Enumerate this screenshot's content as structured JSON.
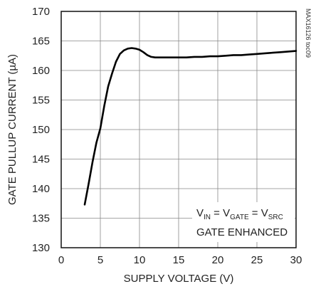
{
  "chart_data": {
    "type": "line",
    "xlabel": "SUPPLY VOLTAGE (V)",
    "ylabel": "GATE PULLUP CURRENT (µA)",
    "xlim": [
      0,
      30
    ],
    "ylim": [
      130,
      170
    ],
    "x_ticks": [
      0,
      5,
      10,
      15,
      20,
      25,
      30
    ],
    "y_ticks": [
      130,
      135,
      140,
      145,
      150,
      155,
      160,
      165,
      170
    ],
    "grid": true,
    "series": [
      {
        "x": [
          3.0,
          3.5,
          4.0,
          4.5,
          5.0,
          5.5,
          6.0,
          6.5,
          7.0,
          7.5,
          8.0,
          8.5,
          9.0,
          9.5,
          10.0,
          10.5,
          11.0,
          11.5,
          12.0,
          13.0,
          14.0,
          15.0,
          16.0,
          17.0,
          18.0,
          19.0,
          20.0,
          21.0,
          22.0,
          23.0,
          24.0,
          25.0,
          26.0,
          27.0,
          28.0,
          29.0,
          30.0
        ],
        "values": [
          137.3,
          140.8,
          144.5,
          147.8,
          150.2,
          154.0,
          157.3,
          159.5,
          161.5,
          162.8,
          163.4,
          163.7,
          163.8,
          163.7,
          163.5,
          163.1,
          162.6,
          162.3,
          162.2,
          162.2,
          162.2,
          162.2,
          162.2,
          162.3,
          162.3,
          162.4,
          162.4,
          162.5,
          162.6,
          162.6,
          162.7,
          162.8,
          162.9,
          163.0,
          163.1,
          163.2,
          163.3
        ]
      }
    ],
    "annotation": {
      "v": "V",
      "in_sub": "IN",
      "eq1": " = V",
      "gate_sub": "GATE",
      "eq2": " = V",
      "src_sub": "SRC",
      "line2": "GATE ENHANCED"
    },
    "watermark": "MAX16126 toc09"
  }
}
